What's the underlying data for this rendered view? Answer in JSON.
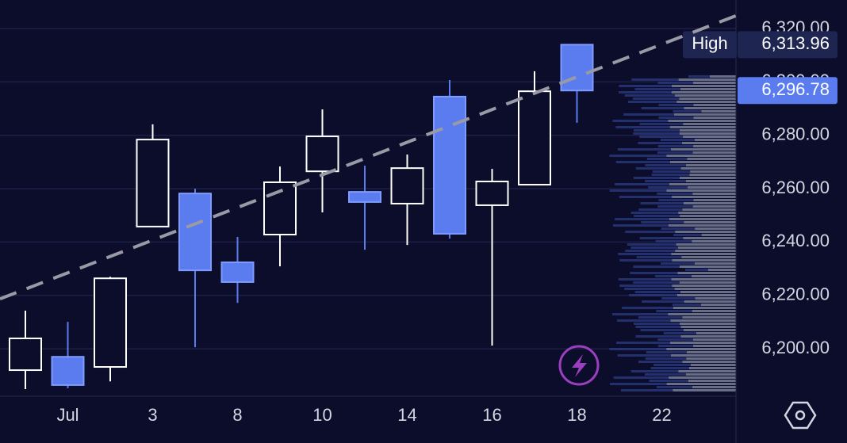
{
  "chart_data": {
    "type": "candlestick",
    "categories": [
      null,
      "Jul",
      null,
      "3",
      null,
      "8",
      null,
      "10",
      null,
      "14",
      null,
      "16",
      null,
      "18",
      null,
      "22",
      null
    ],
    "open": [
      6192.0,
      6197.0,
      6193.2,
      6245.8,
      6258.2,
      6232.4,
      6242.8,
      6266.5,
      6258.8,
      6254.4,
      6294.5,
      6253.8,
      6261.5,
      6313.96,
      null,
      null,
      null
    ],
    "high": [
      6214.3,
      6210.1,
      6227.0,
      6284.1,
      6260.0,
      6241.9,
      6268.3,
      6289.7,
      6268.6,
      6272.8,
      6300.7,
      6267.4,
      6304.0,
      6313.96,
      null,
      null,
      null
    ],
    "low": [
      6184.9,
      6185.2,
      6187.8,
      6245.8,
      6200.6,
      6217.2,
      6230.9,
      6251.1,
      6237.1,
      6238.9,
      6241.3,
      6201.2,
      6261.5,
      6284.7,
      null,
      null,
      null
    ],
    "close": [
      6203.9,
      6186.4,
      6226.4,
      6278.4,
      6229.4,
      6225.0,
      6262.4,
      6279.6,
      6255.0,
      6267.7,
      6243.1,
      6262.7,
      6296.5,
      6296.78,
      null,
      null,
      null
    ],
    "up_color": "#ffffff",
    "down_color": "#5b7cef",
    "ylim": [
      6183.7,
      6330.7
    ],
    "yticks": [
      {
        "value": 6200,
        "label": "6,200.00"
      },
      {
        "value": 6220,
        "label": "6,220.00"
      },
      {
        "value": 6240,
        "label": "6,240.00"
      },
      {
        "value": 6260,
        "label": "6,260.00"
      },
      {
        "value": 6280,
        "label": "6,280.00"
      },
      {
        "value": 6300,
        "label": "6,300.00"
      },
      {
        "value": 6320,
        "label": "6,320.00"
      }
    ],
    "grid": true,
    "trendline": {
      "values": [
        6218.7,
        6324.8
      ],
      "color": "#9a9aa6"
    },
    "high_marker": {
      "name": "High",
      "value": 6313.96,
      "label": "6,313.96"
    },
    "last_price": {
      "value": 6296.78,
      "label": "6,296.78"
    }
  }
}
